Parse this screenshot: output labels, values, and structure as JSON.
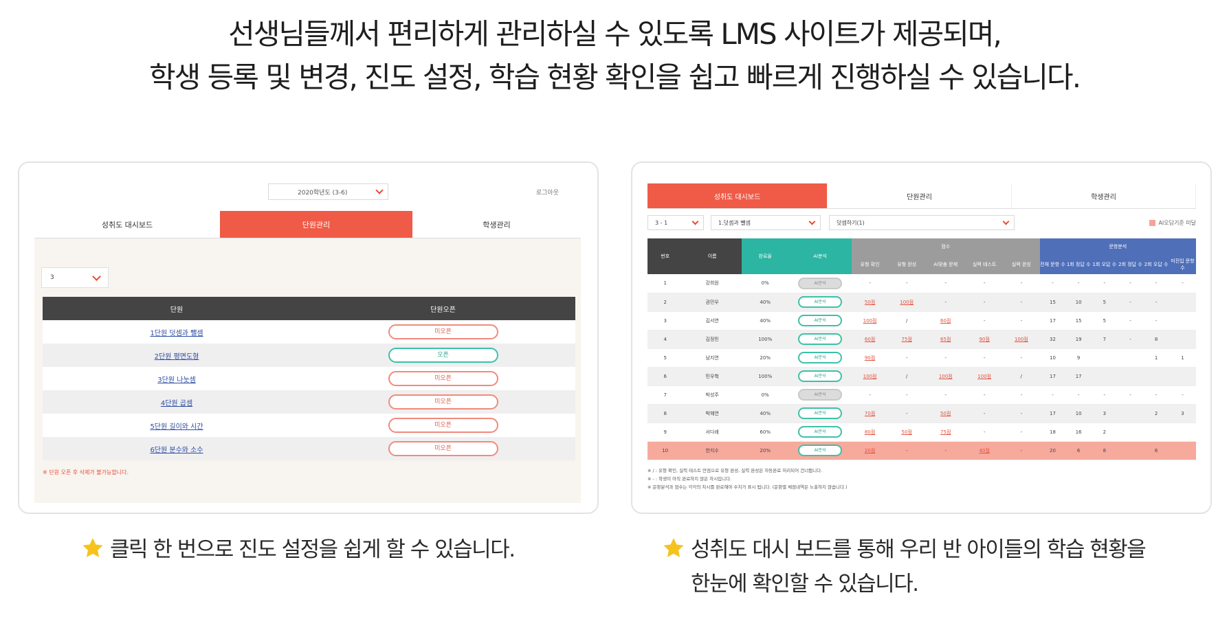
{
  "headline": {
    "line1": "선생님들께서 편리하게 관리하실 수 있도록 LMS 사이트가 제공되며,",
    "line2": "학생 등록 및 변경, 진도 설정, 학습 현황 확인을 쉽고 빠르게 진행하실 수 있습니다."
  },
  "left_panel": {
    "year_select": "2020학년도 (3-6)",
    "logout": "로그아웃",
    "tabs": [
      "성취도 대시보드",
      "단원관리",
      "학생관리"
    ],
    "active_tab": "단원관리",
    "grade_select": "3",
    "table_headers": [
      "단원",
      "단원오픈"
    ],
    "units": [
      {
        "name": "1단원 덧셈과 뺄셈",
        "status": "미오픈",
        "open": false
      },
      {
        "name": "2단원 평면도형",
        "status": "오픈",
        "open": true
      },
      {
        "name": "3단원 나눗셈",
        "status": "미오픈",
        "open": false
      },
      {
        "name": "4단원 곱셈",
        "status": "미오픈",
        "open": false
      },
      {
        "name": "5단원 길이와 시간",
        "status": "미오픈",
        "open": false
      },
      {
        "name": "6단원 분수와 소수",
        "status": "미오픈",
        "open": false
      }
    ],
    "note": "※ 단원 오픈 후 삭제가 불가능합니다."
  },
  "right_panel": {
    "tabs": [
      "성취도 대시보드",
      "단원관리",
      "학생관리"
    ],
    "active_tab": "성취도 대시보드",
    "filters": [
      "3 - 1",
      "1.덧셈과 뺄셈",
      "덧셈하기(1)"
    ],
    "legend": "AI오답기준 미달",
    "group_headers": {
      "score": "점수",
      "analysis": "문항분석"
    },
    "columns": {
      "no": "번호",
      "name": "이름",
      "rate": "완료율",
      "ai": "AI분석",
      "scores": [
        "유형 확인",
        "유형 완성",
        "AI맞춤 문제",
        "실력 테스트",
        "실력 완성"
      ],
      "analysis": [
        "전체 문항 수",
        "1회 정답 수",
        "1회 오답 수",
        "2회 정답 수",
        "2회 오답 수",
        "미진입 문항 수"
      ]
    },
    "ai_label": "AI분석",
    "rows": [
      {
        "no": "1",
        "name": "강희원",
        "rate": "0%",
        "ai_active": false,
        "scores": [
          "-",
          "-",
          "-",
          "-",
          "-"
        ],
        "analysis": [
          "-",
          "-",
          "-",
          "-",
          "-",
          "-"
        ],
        "highlight": false
      },
      {
        "no": "2",
        "name": "권민우",
        "rate": "40%",
        "ai_active": true,
        "scores": [
          "50점",
          "100점",
          "-",
          "-",
          "-"
        ],
        "analysis": [
          "15",
          "10",
          "5",
          "-",
          "-",
          ""
        ],
        "highlight": false
      },
      {
        "no": "3",
        "name": "김서연",
        "rate": "40%",
        "ai_active": true,
        "scores": [
          "100점",
          "/",
          "60점",
          "-",
          "-"
        ],
        "analysis": [
          "17",
          "15",
          "5",
          "-",
          "-",
          ""
        ],
        "highlight": false
      },
      {
        "no": "4",
        "name": "김정민",
        "rate": "100%",
        "ai_active": true,
        "scores": [
          "60점",
          "75점",
          "65점",
          "90점",
          "100점"
        ],
        "analysis": [
          "32",
          "19",
          "7",
          "-",
          "8",
          ""
        ],
        "highlight": false
      },
      {
        "no": "5",
        "name": "남지연",
        "rate": "20%",
        "ai_active": true,
        "scores": [
          "90점",
          "-",
          "-",
          "-",
          "-"
        ],
        "analysis": [
          "10",
          "9",
          "",
          "",
          "1",
          "1"
        ],
        "highlight": false
      },
      {
        "no": "6",
        "name": "민우혁",
        "rate": "100%",
        "ai_active": true,
        "scores": [
          "100점",
          "/",
          "100점",
          "100점",
          "/"
        ],
        "analysis": [
          "17",
          "17",
          "",
          "",
          "",
          ""
        ],
        "highlight": false
      },
      {
        "no": "7",
        "name": "박성주",
        "rate": "0%",
        "ai_active": false,
        "scores": [
          "-",
          "-",
          "-",
          "-",
          "-"
        ],
        "analysis": [
          "-",
          "-",
          "-",
          "-",
          "-",
          "-"
        ],
        "highlight": false
      },
      {
        "no": "8",
        "name": "박혜연",
        "rate": "40%",
        "ai_active": true,
        "scores": [
          "70점",
          "-",
          "50점",
          "-",
          "-"
        ],
        "analysis": [
          "17",
          "10",
          "3",
          "",
          "2",
          "3"
        ],
        "highlight": false
      },
      {
        "no": "9",
        "name": "서다래",
        "rate": "60%",
        "ai_active": true,
        "scores": [
          "80점",
          "50점",
          "75점",
          "-",
          "-"
        ],
        "analysis": [
          "18",
          "16",
          "2",
          "",
          "",
          ""
        ],
        "highlight": false
      },
      {
        "no": "10",
        "name": "한지수",
        "rate": "20%",
        "ai_active": true,
        "scores": [
          "20점",
          "-",
          "-",
          "40점",
          "-"
        ],
        "analysis": [
          "20",
          "6",
          "8",
          "",
          "6",
          ""
        ],
        "highlight": true
      }
    ],
    "notes": [
      "※ / : 유형 확인, 실력 테스트 만점으로 유형 완성, 실력 완성은 자동완료 처리되어 건너뜁니다.",
      "※ - : 학생이 아직 완료하지 않은 차시입니다.",
      "※ 문항분석과 점수는 각각의 차시를 완료해야 수치가 표시 됩니다. (문항별 채점내역은 노출하지 않습니다.)"
    ]
  },
  "captions": {
    "left": "클릭 한 번으로 진도 설정을 쉽게 할 수 있습니다.",
    "right_line1": "성취도 대시 보드를 통해 우리 반 아이들의 학습 현황을",
    "right_line2": "한눈에 확인할 수 있습니다."
  },
  "colors": {
    "accent": "#ef5b47",
    "teal": "#2bb5a2",
    "blue": "#4f6fb9",
    "star": "#f5c31c"
  }
}
